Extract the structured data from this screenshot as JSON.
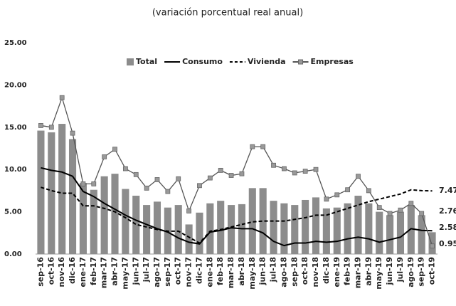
{
  "chart_data": {
    "type": "combo",
    "title": "(variación porcentual real anual)",
    "categories": [
      "sep-16",
      "oct-16",
      "nov-16",
      "dic-16",
      "ene-17",
      "feb-17",
      "mar-17",
      "abr-17",
      "may-17",
      "jun-17",
      "jul-17",
      "ago-17",
      "sep-17",
      "oct-17",
      "nov-17",
      "dic-17",
      "ene-18",
      "feb-18",
      "mar-18",
      "abr-18",
      "may-18",
      "jun-18",
      "jul-18",
      "ago-18",
      "sep-18",
      "oct-18",
      "nov-18",
      "dic-18",
      "ene-19",
      "feb-19",
      "mar-19",
      "abr-19",
      "may-19",
      "jun-19",
      "jul-19",
      "ago-19",
      "sep-19",
      "oct-19"
    ],
    "series": [
      {
        "name": "Total",
        "type": "bar",
        "color": "#8c8c8c",
        "values": [
          14.6,
          14.4,
          15.4,
          13.6,
          8.4,
          7.6,
          9.2,
          9.5,
          7.7,
          6.9,
          5.8,
          6.2,
          5.5,
          5.8,
          3.5,
          4.9,
          6.0,
          6.3,
          5.8,
          5.9,
          7.8,
          7.8,
          6.3,
          6.0,
          5.8,
          6.4,
          6.7,
          5.4,
          5.5,
          6.0,
          6.9,
          6.0,
          5.0,
          4.6,
          5.0,
          5.8,
          4.6,
          2.58
        ]
      },
      {
        "name": "Consumo",
        "type": "line",
        "color": "#000000",
        "dashed": false,
        "markers": false,
        "values": [
          10.2,
          9.9,
          9.7,
          9.2,
          7.4,
          6.8,
          6.0,
          5.3,
          4.6,
          4.0,
          3.5,
          3.0,
          2.6,
          1.9,
          1.4,
          1.2,
          2.6,
          2.8,
          3.1,
          3.0,
          3.0,
          2.5,
          1.5,
          1.0,
          1.3,
          1.3,
          1.5,
          1.4,
          1.5,
          1.8,
          2.0,
          1.8,
          1.4,
          1.7,
          2.0,
          3.0,
          2.8,
          2.76
        ]
      },
      {
        "name": "Vivienda",
        "type": "line",
        "color": "#000000",
        "dashed": true,
        "markers": false,
        "values": [
          7.9,
          7.5,
          7.2,
          7.2,
          5.7,
          5.7,
          5.4,
          5.0,
          4.3,
          3.5,
          3.2,
          2.9,
          2.7,
          2.7,
          2.0,
          1.3,
          2.7,
          2.9,
          3.2,
          3.5,
          3.8,
          3.9,
          3.9,
          3.9,
          4.1,
          4.3,
          4.6,
          4.6,
          5.0,
          5.4,
          5.8,
          6.2,
          6.5,
          6.8,
          7.1,
          7.6,
          7.5,
          7.47
        ]
      },
      {
        "name": "Empresas",
        "type": "line",
        "color": "#555555",
        "dashed": false,
        "markers": true,
        "values": [
          15.2,
          15.0,
          18.5,
          14.3,
          8.3,
          8.3,
          11.5,
          12.4,
          10.1,
          9.4,
          7.8,
          8.8,
          7.4,
          8.9,
          5.1,
          8.1,
          9.0,
          9.9,
          9.3,
          9.5,
          12.7,
          12.7,
          10.5,
          10.1,
          9.6,
          9.8,
          10.0,
          6.5,
          7.0,
          7.6,
          9.2,
          7.5,
          5.5,
          4.8,
          5.2,
          6.0,
          4.8,
          0.95
        ]
      }
    ],
    "ylim": [
      0,
      25
    ],
    "yticks": [
      {
        "value": 0,
        "label": "0.00"
      },
      {
        "value": 5,
        "label": "5.00"
      },
      {
        "value": 10,
        "label": "10.00"
      },
      {
        "value": 15,
        "label": "15.00"
      },
      {
        "value": 20,
        "label": "20.00"
      },
      {
        "value": 25,
        "label": "25.00"
      }
    ],
    "grid": false,
    "legend": "top"
  }
}
